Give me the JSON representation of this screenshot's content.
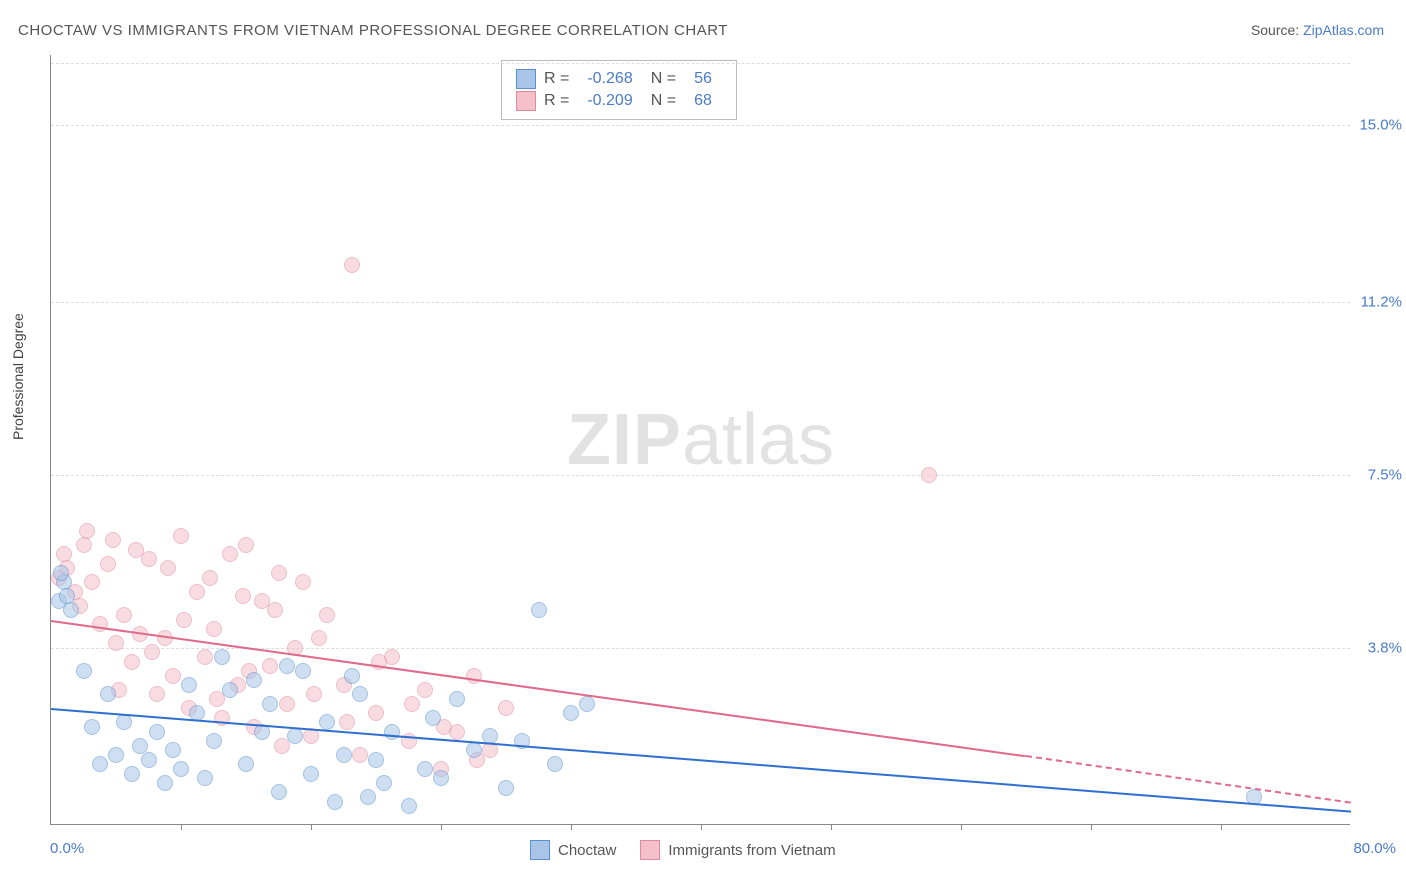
{
  "title": "CHOCTAW VS IMMIGRANTS FROM VIETNAM PROFESSIONAL DEGREE CORRELATION CHART",
  "source_label": "Source: ",
  "source_value": "ZipAtlas.com",
  "ylabel": "Professional Degree",
  "watermark_bold": "ZIP",
  "watermark_rest": "atlas",
  "chart": {
    "type": "scatter",
    "xlim": [
      0,
      80
    ],
    "ylim": [
      0,
      16.5
    ],
    "background_color": "#ffffff",
    "grid_color": "#dddddd",
    "axis_color": "#888888",
    "yticks": [
      {
        "v": 3.8,
        "label": "3.8%"
      },
      {
        "v": 7.5,
        "label": "7.5%"
      },
      {
        "v": 11.2,
        "label": "11.2%"
      },
      {
        "v": 15.0,
        "label": "15.0%"
      }
    ],
    "xticks": [
      8,
      16,
      24,
      32,
      40,
      48,
      56,
      64,
      72
    ],
    "xlabel_min": "0.0%",
    "xlabel_max": "80.0%",
    "series": [
      {
        "name": "Choctaw",
        "fill_color": "#a8c5e8",
        "stroke_color": "#5a8fd0",
        "fill_opacity": 0.55,
        "marker_radius": 8,
        "R": "-0.268",
        "N": "56",
        "trend": {
          "x1": 0,
          "y1": 2.5,
          "x2": 80,
          "y2": 0.3,
          "color": "#2e6fd0",
          "dash_from_x": 80
        },
        "points": [
          [
            0.5,
            4.8
          ],
          [
            0.8,
            5.2
          ],
          [
            1.0,
            4.9
          ],
          [
            1.2,
            4.6
          ],
          [
            0.6,
            5.4
          ],
          [
            2.0,
            3.3
          ],
          [
            2.5,
            2.1
          ],
          [
            3.0,
            1.3
          ],
          [
            3.5,
            2.8
          ],
          [
            4.0,
            1.5
          ],
          [
            4.5,
            2.2
          ],
          [
            5.0,
            1.1
          ],
          [
            5.5,
            1.7
          ],
          [
            6.0,
            1.4
          ],
          [
            6.5,
            2.0
          ],
          [
            7.0,
            0.9
          ],
          [
            7.5,
            1.6
          ],
          [
            8.0,
            1.2
          ],
          [
            8.5,
            3.0
          ],
          [
            9.0,
            2.4
          ],
          [
            9.5,
            1.0
          ],
          [
            10.0,
            1.8
          ],
          [
            10.5,
            3.6
          ],
          [
            11.0,
            2.9
          ],
          [
            12.0,
            1.3
          ],
          [
            12.5,
            3.1
          ],
          [
            13.0,
            2.0
          ],
          [
            13.5,
            2.6
          ],
          [
            14.0,
            0.7
          ],
          [
            15.0,
            1.9
          ],
          [
            15.5,
            3.3
          ],
          [
            16.0,
            1.1
          ],
          [
            17.0,
            2.2
          ],
          [
            17.5,
            0.5
          ],
          [
            18.0,
            1.5
          ],
          [
            19.0,
            2.8
          ],
          [
            19.5,
            0.6
          ],
          [
            20.0,
            1.4
          ],
          [
            20.5,
            0.9
          ],
          [
            21.0,
            2.0
          ],
          [
            22.0,
            0.4
          ],
          [
            23.0,
            1.2
          ],
          [
            23.5,
            2.3
          ],
          [
            24.0,
            1.0
          ],
          [
            25.0,
            2.7
          ],
          [
            26.0,
            1.6
          ],
          [
            27.0,
            1.9
          ],
          [
            28.0,
            0.8
          ],
          [
            29.0,
            1.8
          ],
          [
            30.0,
            4.6
          ],
          [
            31.0,
            1.3
          ],
          [
            32.0,
            2.4
          ],
          [
            33.0,
            2.6
          ],
          [
            74.0,
            0.6
          ],
          [
            14.5,
            3.4
          ],
          [
            18.5,
            3.2
          ]
        ]
      },
      {
        "name": "Immigrants from Vietnam",
        "fill_color": "#f5c0ca",
        "stroke_color": "#e08aa0",
        "fill_opacity": 0.55,
        "marker_radius": 8,
        "R": "-0.209",
        "N": "68",
        "trend": {
          "x1": 0,
          "y1": 4.4,
          "x2": 60,
          "y2": 1.5,
          "color": "#e06a8a",
          "dash_from_x": 60,
          "dash_to": [
            80,
            0.5
          ]
        },
        "points": [
          [
            0.5,
            5.3
          ],
          [
            1.0,
            5.5
          ],
          [
            1.5,
            5.0
          ],
          [
            0.8,
            5.8
          ],
          [
            2.0,
            6.0
          ],
          [
            2.5,
            5.2
          ],
          [
            3.0,
            4.3
          ],
          [
            3.5,
            5.6
          ],
          [
            4.0,
            3.9
          ],
          [
            4.5,
            4.5
          ],
          [
            5.0,
            3.5
          ],
          [
            5.5,
            4.1
          ],
          [
            6.0,
            5.7
          ],
          [
            6.5,
            2.8
          ],
          [
            7.0,
            4.0
          ],
          [
            7.5,
            3.2
          ],
          [
            8.0,
            6.2
          ],
          [
            8.5,
            2.5
          ],
          [
            9.0,
            5.0
          ],
          [
            9.5,
            3.6
          ],
          [
            10.0,
            4.2
          ],
          [
            10.5,
            2.3
          ],
          [
            11.0,
            5.8
          ],
          [
            11.5,
            3.0
          ],
          [
            12.0,
            6.0
          ],
          [
            12.5,
            2.1
          ],
          [
            13.0,
            4.8
          ],
          [
            13.5,
            3.4
          ],
          [
            14.0,
            5.4
          ],
          [
            14.5,
            2.6
          ],
          [
            15.0,
            3.8
          ],
          [
            15.5,
            5.2
          ],
          [
            16.0,
            1.9
          ],
          [
            17.0,
            4.5
          ],
          [
            18.0,
            3.0
          ],
          [
            18.5,
            12.0
          ],
          [
            19.0,
            1.5
          ],
          [
            20.0,
            2.4
          ],
          [
            21.0,
            3.6
          ],
          [
            22.0,
            1.8
          ],
          [
            23.0,
            2.9
          ],
          [
            24.0,
            1.2
          ],
          [
            25.0,
            2.0
          ],
          [
            26.0,
            3.2
          ],
          [
            27.0,
            1.6
          ],
          [
            28.0,
            2.5
          ],
          [
            2.2,
            6.3
          ],
          [
            3.8,
            6.1
          ],
          [
            5.2,
            5.9
          ],
          [
            7.2,
            5.5
          ],
          [
            9.8,
            5.3
          ],
          [
            11.8,
            4.9
          ],
          [
            13.8,
            4.6
          ],
          [
            16.5,
            4.0
          ],
          [
            54.0,
            7.5
          ],
          [
            1.8,
            4.7
          ],
          [
            4.2,
            2.9
          ],
          [
            6.2,
            3.7
          ],
          [
            8.2,
            4.4
          ],
          [
            10.2,
            2.7
          ],
          [
            12.2,
            3.3
          ],
          [
            14.2,
            1.7
          ],
          [
            16.2,
            2.8
          ],
          [
            18.2,
            2.2
          ],
          [
            20.2,
            3.5
          ],
          [
            22.2,
            2.6
          ],
          [
            24.2,
            2.1
          ],
          [
            26.2,
            1.4
          ]
        ]
      }
    ]
  },
  "legend_bottom": [
    {
      "label": "Choctaw",
      "fill": "#a8c5e8",
      "stroke": "#5a8fd0"
    },
    {
      "label": "Immigrants from Vietnam",
      "fill": "#f5c0ca",
      "stroke": "#e08aa0"
    }
  ]
}
